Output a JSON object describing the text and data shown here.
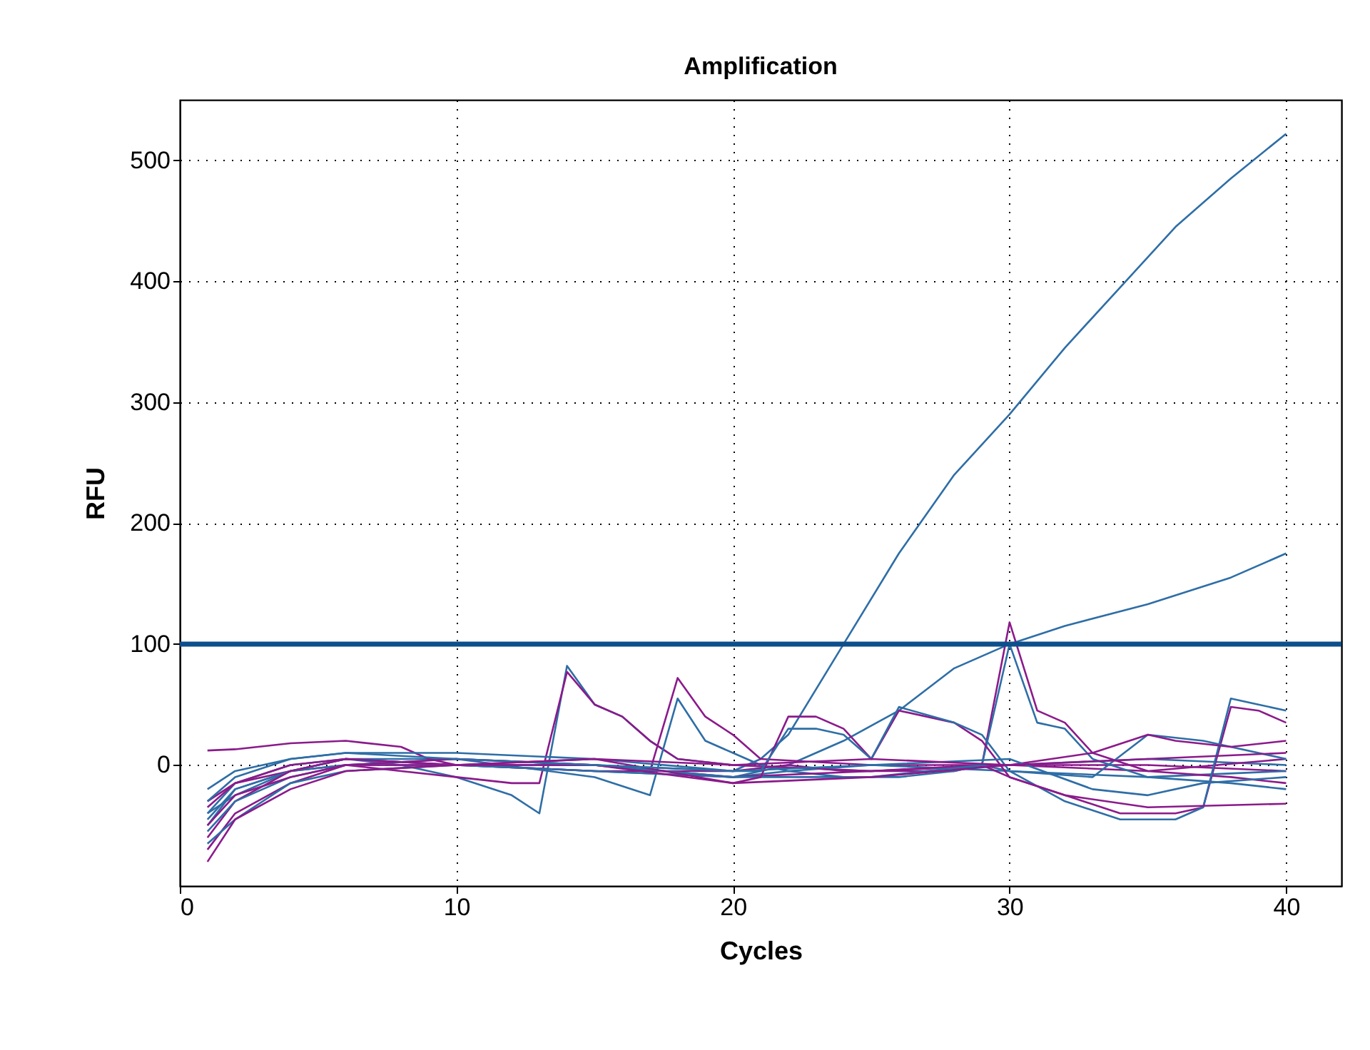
{
  "chart_data": {
    "type": "line",
    "title": "Amplification",
    "xlabel": "Cycles",
    "ylabel": "RFU",
    "xlim": [
      0,
      42
    ],
    "ylim": [
      -100,
      550
    ],
    "xticks": [
      0,
      10,
      20,
      30,
      40
    ],
    "yticks": [
      0,
      100,
      200,
      300,
      400,
      500
    ],
    "grid": true,
    "ref_lines": [
      {
        "axis": "y",
        "value": 100,
        "color": "#0d4f8b"
      }
    ],
    "series": [
      {
        "color": "#2e6ea6",
        "x": [
          1,
          2,
          4,
          6,
          10,
          15,
          20,
          21,
          22,
          24,
          26,
          28,
          30,
          32,
          34,
          36,
          38,
          40
        ],
        "values": [
          -40,
          -15,
          0,
          5,
          5,
          0,
          -5,
          5,
          25,
          100,
          175,
          240,
          290,
          345,
          395,
          445,
          485,
          522
        ]
      },
      {
        "color": "#2e6ea6",
        "x": [
          1,
          2,
          4,
          6,
          10,
          15,
          20,
          21,
          22,
          24,
          26,
          28,
          29,
          30,
          32,
          35,
          38,
          40
        ],
        "values": [
          -50,
          -20,
          -5,
          5,
          0,
          -5,
          -10,
          -5,
          0,
          20,
          45,
          80,
          90,
          100,
          115,
          133,
          155,
          175
        ]
      },
      {
        "color": "#2e6ea6",
        "x": [
          1,
          2,
          4,
          6,
          8,
          10,
          12,
          13,
          14,
          15,
          16,
          17,
          18,
          20,
          25,
          30,
          35,
          40
        ],
        "values": [
          -40,
          -25,
          -5,
          5,
          0,
          -10,
          -25,
          -40,
          82,
          50,
          40,
          20,
          5,
          0,
          -5,
          0,
          5,
          0
        ]
      },
      {
        "color": "#8b1a8b",
        "x": [
          1,
          2,
          4,
          6,
          8,
          10,
          12,
          13,
          14,
          15,
          16,
          17,
          18,
          20,
          25,
          30,
          35,
          40
        ],
        "values": [
          -30,
          -15,
          -5,
          0,
          -5,
          -10,
          -15,
          -15,
          77,
          50,
          40,
          20,
          5,
          0,
          -5,
          0,
          0,
          -5
        ]
      },
      {
        "color": "#8b1a8b",
        "x": [
          1,
          2,
          4,
          6,
          10,
          15,
          17,
          18,
          19,
          20,
          21,
          25,
          30,
          35,
          40
        ],
        "values": [
          -35,
          -15,
          0,
          5,
          0,
          0,
          -5,
          72,
          40,
          25,
          5,
          0,
          0,
          -5,
          5
        ]
      },
      {
        "color": "#2e6ea6",
        "x": [
          1,
          2,
          4,
          6,
          10,
          15,
          17,
          18,
          19,
          20,
          21,
          22,
          25,
          30,
          35,
          40
        ],
        "values": [
          -45,
          -20,
          -5,
          0,
          5,
          -10,
          -25,
          55,
          20,
          10,
          0,
          -5,
          0,
          -5,
          -10,
          -5
        ]
      },
      {
        "color": "#8b1a8b",
        "x": [
          1,
          2,
          4,
          6,
          10,
          15,
          20,
          22,
          24,
          26,
          28,
          29,
          30,
          31,
          32,
          33,
          35,
          38,
          40
        ],
        "values": [
          -60,
          -30,
          -5,
          5,
          0,
          -5,
          -5,
          0,
          -5,
          -5,
          -5,
          0,
          118,
          45,
          35,
          10,
          -5,
          -10,
          -15
        ]
      },
      {
        "color": "#2e6ea6",
        "x": [
          1,
          2,
          4,
          6,
          10,
          15,
          20,
          22,
          24,
          26,
          28,
          29,
          30,
          31,
          32,
          33,
          35,
          38,
          40
        ],
        "values": [
          -55,
          -30,
          -10,
          0,
          0,
          -5,
          -10,
          -5,
          -10,
          -10,
          -5,
          0,
          100,
          35,
          30,
          5,
          -10,
          -15,
          -20
        ]
      },
      {
        "color": "#8b1a8b",
        "x": [
          1,
          2,
          4,
          6,
          10,
          15,
          20,
          25,
          29,
          30,
          32,
          34,
          36,
          37,
          38,
          39,
          40
        ],
        "values": [
          -70,
          -40,
          -15,
          0,
          5,
          0,
          -10,
          -5,
          0,
          -10,
          -25,
          -40,
          -40,
          -35,
          48,
          45,
          35
        ]
      },
      {
        "color": "#2e6ea6",
        "x": [
          1,
          2,
          4,
          6,
          10,
          15,
          20,
          25,
          29,
          30,
          32,
          34,
          36,
          37,
          38,
          39,
          40
        ],
        "values": [
          -65,
          -45,
          -15,
          -5,
          0,
          0,
          -10,
          -10,
          0,
          -5,
          -30,
          -45,
          -45,
          -35,
          55,
          50,
          45
        ]
      },
      {
        "color": "#8b1a8b",
        "x": [
          1,
          2,
          4,
          6,
          8,
          9,
          10,
          15,
          20,
          21,
          22,
          23,
          24,
          25,
          26,
          28,
          29,
          30,
          32,
          35,
          40
        ],
        "values": [
          12,
          13,
          18,
          20,
          15,
          5,
          0,
          0,
          -15,
          -10,
          40,
          40,
          30,
          5,
          45,
          35,
          20,
          -10,
          -25,
          -35,
          -32
        ]
      },
      {
        "color": "#2e6ea6",
        "x": [
          1,
          2,
          4,
          6,
          10,
          15,
          20,
          21,
          22,
          23,
          24,
          25,
          26,
          28,
          29,
          30,
          33,
          35,
          37,
          40
        ],
        "values": [
          -20,
          -5,
          5,
          10,
          10,
          5,
          -5,
          -5,
          30,
          30,
          25,
          5,
          48,
          35,
          25,
          -5,
          -10,
          25,
          20,
          5
        ]
      },
      {
        "color": "#8b1a8b",
        "x": [
          1,
          2,
          4,
          6,
          10,
          15,
          20,
          25,
          30,
          33,
          35,
          36,
          38,
          40
        ],
        "values": [
          -80,
          -45,
          -20,
          -5,
          0,
          5,
          -15,
          -10,
          0,
          10,
          25,
          20,
          15,
          20
        ]
      },
      {
        "color": "#2e6ea6",
        "x": [
          1,
          2,
          4,
          6,
          10,
          15,
          20,
          25,
          30,
          33,
          35,
          37,
          40
        ],
        "values": [
          -30,
          -10,
          5,
          10,
          5,
          0,
          -5,
          0,
          5,
          -20,
          -25,
          -15,
          -10
        ]
      },
      {
        "color": "#8b1a8b",
        "x": [
          1,
          2,
          4,
          6,
          10,
          15,
          20,
          25,
          30,
          35,
          40
        ],
        "values": [
          -50,
          -25,
          -10,
          0,
          0,
          5,
          0,
          5,
          0,
          5,
          10
        ]
      }
    ]
  }
}
